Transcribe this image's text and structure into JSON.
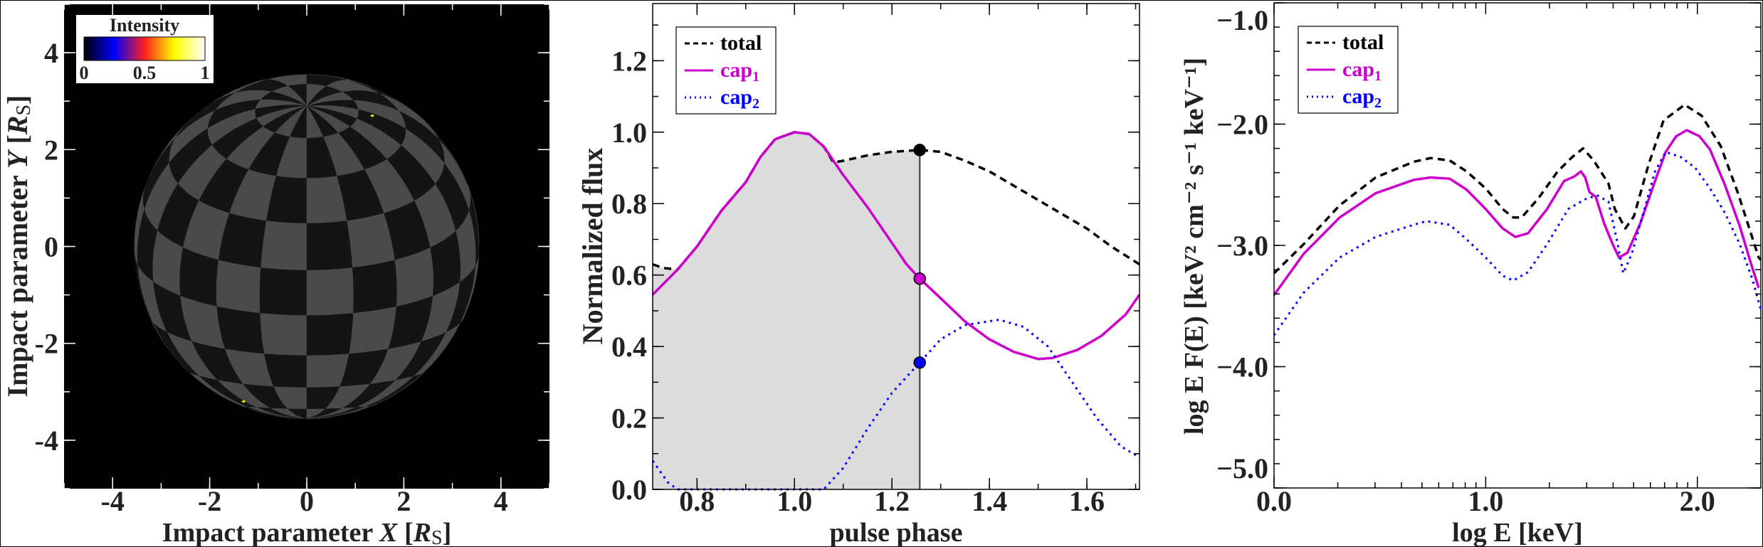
{
  "chart_data": [
    {
      "type": "image",
      "title": "Intensity",
      "xlabel": {
        "prefix": "Impact parameter ",
        "var": "X",
        "unit": "R",
        "unit_sub": "S"
      },
      "ylabel": {
        "prefix": "Impact parameter ",
        "var": "Y",
        "unit": "R",
        "unit_sub": "S"
      },
      "xlim": [
        -5,
        5
      ],
      "ylim": [
        -5,
        5
      ],
      "xticks": [
        "-4",
        "-2",
        "0",
        "2",
        "4"
      ],
      "xtick_values": [
        -4,
        -2,
        0,
        2,
        4
      ],
      "yticks": [
        "-4",
        "-2",
        "0",
        "2",
        "4"
      ],
      "ytick_values": [
        -4,
        -2,
        0,
        2,
        4
      ],
      "colorbar": {
        "label": "Intensity",
        "ticks": [
          "0",
          "0.5",
          "1"
        ],
        "tick_values": [
          0,
          0.5,
          1
        ],
        "colors": [
          "#000000",
          "#0000ff",
          "#ff2020",
          "#ffff00",
          "#ffffff"
        ]
      },
      "sphere": {
        "radius": 3.55,
        "background": "#000000",
        "light_color": "#4a4a4a",
        "dark_color": "#141414",
        "hot_spots": [
          [
            1.35,
            2.7
          ],
          [
            -1.3,
            -3.2
          ]
        ],
        "hot_spot_color": "#ffee00"
      }
    },
    {
      "type": "line",
      "xlabel": "pulse phase",
      "ylabel": "Normalized flux",
      "xlim": [
        0.709,
        1.708
      ],
      "ylim": [
        0,
        1.36
      ],
      "xticks": [
        "0.8",
        "1.0",
        "1.2",
        "1.4",
        "1.6"
      ],
      "xtick_values": [
        0.8,
        1.0,
        1.2,
        1.4,
        1.6
      ],
      "yticks": [
        "0.0",
        "0.2",
        "0.4",
        "0.6",
        "0.8",
        "1.0",
        "1.2"
      ],
      "ytick_values": [
        0,
        0.2,
        0.4,
        0.6,
        0.8,
        1.0,
        1.2
      ],
      "legend": [
        {
          "name": "total",
          "sub": ""
        },
        {
          "name": "cap",
          "sub": "1"
        },
        {
          "name": "cap",
          "sub": "2"
        }
      ],
      "legend_position": "top-left",
      "current_phase": 1.257,
      "markers": [
        0.95,
        0.59,
        0.355
      ],
      "series": [
        {
          "name": "total",
          "color": "#000000",
          "style": "dashed",
          "x": [
            0.709,
            0.73,
            0.76,
            0.8,
            0.85,
            0.9,
            0.93,
            0.96,
            1.0,
            1.03,
            1.06,
            1.08,
            1.1,
            1.15,
            1.2,
            1.257,
            1.3,
            1.35,
            1.4,
            1.45,
            1.5,
            1.55,
            1.6,
            1.65,
            1.708
          ],
          "y": [
            0.63,
            0.62,
            0.615,
            0.68,
            0.78,
            0.86,
            0.93,
            0.98,
            1.0,
            0.995,
            0.96,
            0.915,
            0.92,
            0.935,
            0.945,
            0.95,
            0.945,
            0.92,
            0.89,
            0.85,
            0.81,
            0.77,
            0.73,
            0.68,
            0.63
          ]
        },
        {
          "name": "cap1",
          "color": "#cc00cc",
          "style": "solid",
          "x": [
            0.709,
            0.76,
            0.8,
            0.85,
            0.9,
            0.93,
            0.96,
            1.0,
            1.03,
            1.06,
            1.1,
            1.15,
            1.2,
            1.23,
            1.257,
            1.3,
            1.35,
            1.4,
            1.45,
            1.5,
            1.53,
            1.58,
            1.63,
            1.68,
            1.708
          ],
          "y": [
            0.545,
            0.615,
            0.68,
            0.78,
            0.86,
            0.93,
            0.98,
            1.0,
            0.995,
            0.96,
            0.88,
            0.79,
            0.69,
            0.63,
            0.59,
            0.535,
            0.47,
            0.42,
            0.385,
            0.365,
            0.368,
            0.39,
            0.43,
            0.49,
            0.545
          ]
        },
        {
          "name": "cap2",
          "color": "#0000ff",
          "style": "dotted",
          "x": [
            0.709,
            0.74,
            0.76,
            1.06,
            1.1,
            1.15,
            1.2,
            1.257,
            1.3,
            1.35,
            1.42,
            1.47,
            1.52,
            1.57,
            1.62,
            1.67,
            1.708
          ],
          "y": [
            0.08,
            0.02,
            0.0,
            0.0,
            0.06,
            0.17,
            0.27,
            0.355,
            0.42,
            0.46,
            0.475,
            0.455,
            0.4,
            0.3,
            0.2,
            0.12,
            0.09
          ]
        }
      ]
    },
    {
      "type": "line",
      "xlabel": "log E [keV]",
      "ylabel": "log E F(E) [keV² cm⁻² s⁻¹ keV⁻¹]",
      "xlim": [
        0,
        2.3
      ],
      "ylim": [
        -5,
        -1
      ],
      "xticks": [
        "0.0",
        "1.0",
        "2.0"
      ],
      "xtick_values": [
        0,
        1,
        2
      ],
      "yticks": [
        "−5.0",
        "−4.0",
        "−3.0",
        "−2.0",
        "−1.0"
      ],
      "ytick_values": [
        -5,
        -4,
        -3,
        -2,
        -1
      ],
      "legend": [
        {
          "name": "total",
          "sub": ""
        },
        {
          "name": "cap",
          "sub": "1"
        },
        {
          "name": "cap",
          "sub": "2"
        }
      ],
      "legend_position": "top-left",
      "series": [
        {
          "name": "total",
          "color": "#000000",
          "style": "dashed",
          "x": [
            0,
            0.14,
            0.31,
            0.48,
            0.66,
            0.74,
            0.83,
            0.91,
            1.0,
            1.08,
            1.13,
            1.17,
            1.25,
            1.34,
            1.41,
            1.46,
            1.51,
            1.58,
            1.61,
            1.66,
            1.7,
            1.77,
            1.84,
            1.94,
            2.02,
            2.11,
            2.19,
            2.29,
            2.3
          ],
          "y": [
            -3.23,
            -2.99,
            -2.67,
            -2.44,
            -2.31,
            -2.28,
            -2.3,
            -2.39,
            -2.53,
            -2.7,
            -2.77,
            -2.77,
            -2.61,
            -2.39,
            -2.27,
            -2.2,
            -2.3,
            -2.49,
            -2.7,
            -2.86,
            -2.76,
            -2.33,
            -1.97,
            -1.84,
            -1.93,
            -2.18,
            -2.56,
            -3.1,
            -3.12
          ]
        },
        {
          "name": "cap1",
          "color": "#cc00cc",
          "style": "solid",
          "x": [
            0,
            0.14,
            0.31,
            0.48,
            0.66,
            0.74,
            0.83,
            0.91,
            1.0,
            1.08,
            1.14,
            1.2,
            1.29,
            1.37,
            1.42,
            1.45,
            1.47,
            1.49,
            1.52,
            1.56,
            1.6,
            1.63,
            1.67,
            1.73,
            1.8,
            1.85,
            1.9,
            1.95,
            2.01,
            2.06,
            2.13,
            2.2,
            2.25,
            2.29
          ],
          "y": [
            -3.41,
            -3.07,
            -2.77,
            -2.57,
            -2.46,
            -2.44,
            -2.45,
            -2.54,
            -2.7,
            -2.86,
            -2.93,
            -2.9,
            -2.7,
            -2.47,
            -2.43,
            -2.39,
            -2.44,
            -2.56,
            -2.6,
            -2.82,
            -2.99,
            -3.1,
            -3.06,
            -2.82,
            -2.47,
            -2.23,
            -2.1,
            -2.05,
            -2.1,
            -2.21,
            -2.5,
            -2.84,
            -3.13,
            -3.35
          ]
        },
        {
          "name": "cap2",
          "color": "#0000ff",
          "style": "dotted",
          "x": [
            0,
            0.14,
            0.31,
            0.48,
            0.66,
            0.72,
            0.83,
            0.91,
            1.0,
            1.08,
            1.13,
            1.2,
            1.29,
            1.39,
            1.48,
            1.53,
            1.58,
            1.62,
            1.65,
            1.69,
            1.75,
            1.8,
            1.85,
            1.92,
            1.99,
            2.06,
            2.13,
            2.2,
            2.26,
            2.3
          ],
          "y": [
            -3.74,
            -3.39,
            -3.1,
            -2.93,
            -2.83,
            -2.8,
            -2.83,
            -2.95,
            -3.1,
            -3.25,
            -3.29,
            -3.22,
            -2.99,
            -2.7,
            -2.61,
            -2.59,
            -2.64,
            -2.96,
            -3.23,
            -3.07,
            -2.7,
            -2.39,
            -2.23,
            -2.27,
            -2.36,
            -2.53,
            -2.73,
            -2.99,
            -3.28,
            -3.53
          ]
        }
      ]
    }
  ]
}
